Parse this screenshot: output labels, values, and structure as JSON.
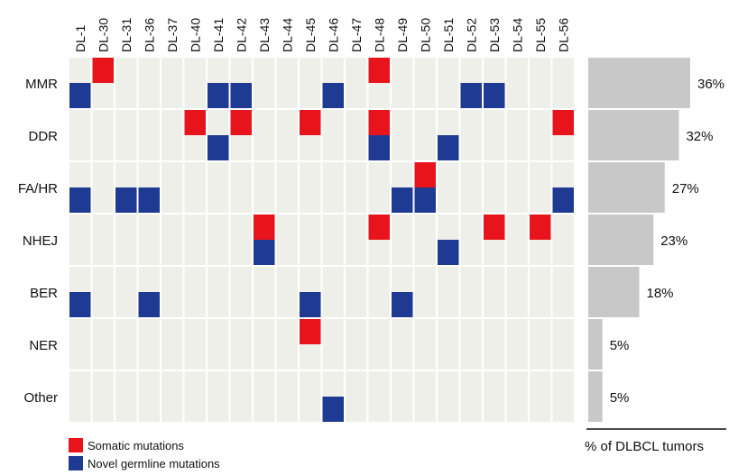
{
  "chart_data": {
    "type": "heatmap",
    "title": "",
    "columns": [
      "DL-1",
      "DL-30",
      "DL-31",
      "DL-36",
      "DL-37",
      "DL-40",
      "DL-41",
      "DL-42",
      "DL-43",
      "DL-44",
      "DL-45",
      "DL-46",
      "DL-47",
      "DL-48",
      "DL-49",
      "DL-50",
      "DL-51",
      "DL-52",
      "DL-53",
      "DL-54",
      "DL-55",
      "DL-56"
    ],
    "rows": [
      {
        "name": "MMR",
        "percent": 36,
        "percent_label": "36%",
        "somatic": [
          "DL-30",
          "DL-48"
        ],
        "germline": [
          "DL-1",
          "DL-41",
          "DL-42",
          "DL-46",
          "DL-52",
          "DL-53"
        ]
      },
      {
        "name": "DDR",
        "percent": 32,
        "percent_label": "32%",
        "somatic": [
          "DL-40",
          "DL-42",
          "DL-45",
          "DL-48",
          "DL-56"
        ],
        "germline": [
          "DL-41",
          "DL-48",
          "DL-51"
        ]
      },
      {
        "name": "FA/HR",
        "percent": 27,
        "percent_label": "27%",
        "somatic": [
          "DL-50"
        ],
        "germline": [
          "DL-1",
          "DL-31",
          "DL-36",
          "DL-49",
          "DL-50",
          "DL-56"
        ]
      },
      {
        "name": "NHEJ",
        "percent": 23,
        "percent_label": "23%",
        "somatic": [
          "DL-43",
          "DL-48",
          "DL-53",
          "DL-55"
        ],
        "germline": [
          "DL-43",
          "DL-51"
        ]
      },
      {
        "name": "BER",
        "percent": 18,
        "percent_label": "18%",
        "somatic": [],
        "germline": [
          "DL-1",
          "DL-36",
          "DL-45",
          "DL-49"
        ]
      },
      {
        "name": "NER",
        "percent": 5,
        "percent_label": "5%",
        "somatic": [
          "DL-45"
        ],
        "germline": []
      },
      {
        "name": "Other",
        "percent": 5,
        "percent_label": "5%",
        "somatic": [],
        "germline": [
          "DL-46"
        ]
      }
    ],
    "legend": [
      {
        "key": "somatic",
        "label": "Somatic mutations",
        "color": "#e8141c"
      },
      {
        "key": "germline",
        "label": "Novel germline mutations",
        "color": "#1f3a93"
      }
    ],
    "bar_axis_title": "% of DLBCL tumors",
    "bar_color": "#c8c8c8",
    "cell_color": "#efefea"
  }
}
